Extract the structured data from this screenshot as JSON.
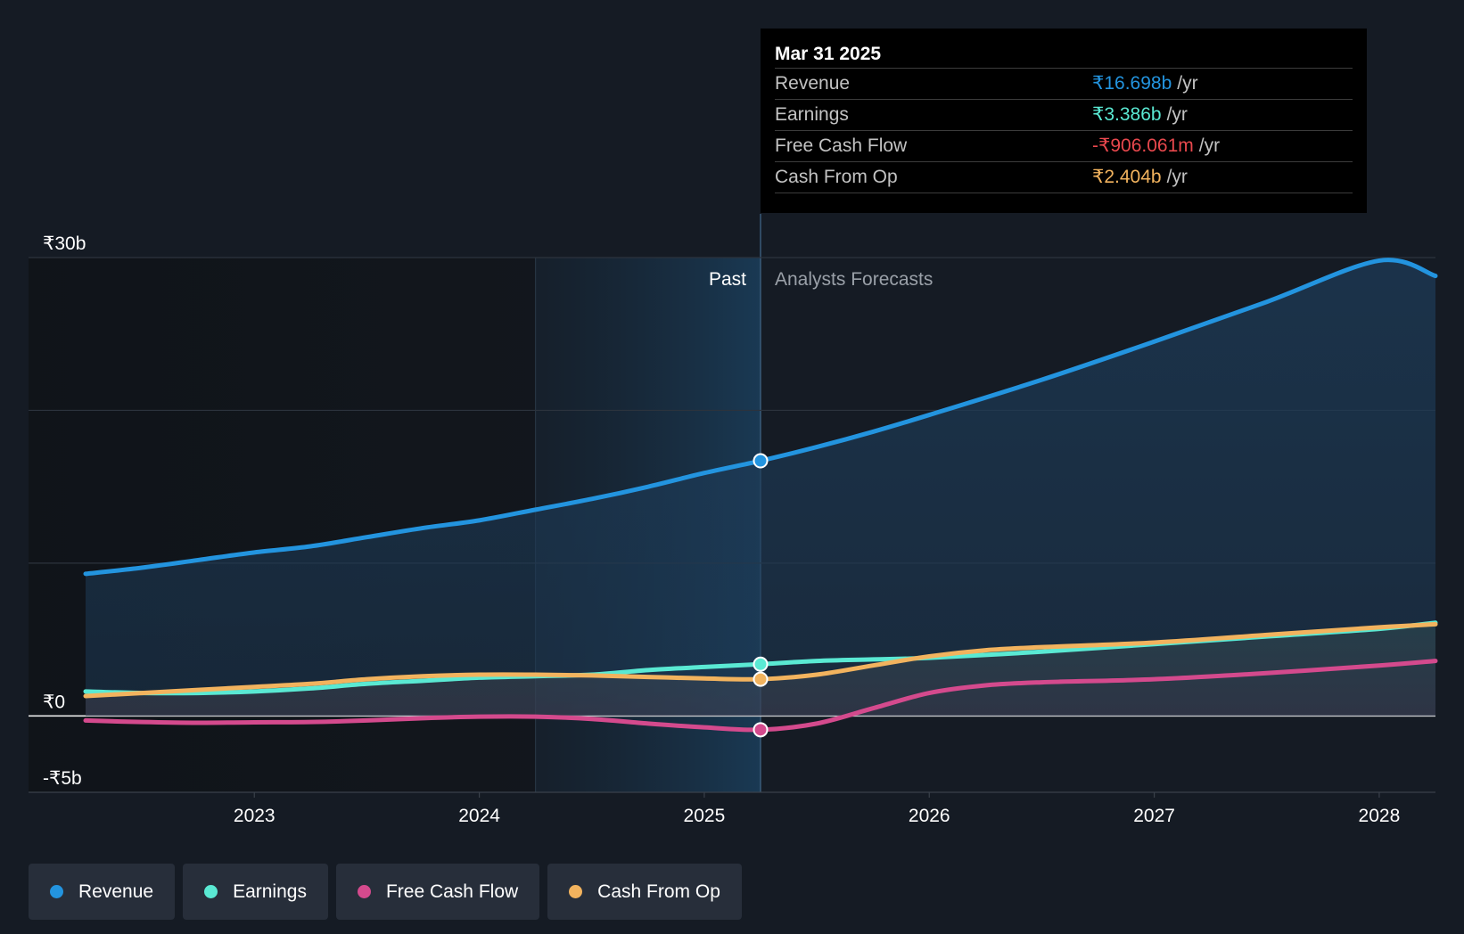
{
  "chart_data": {
    "type": "area",
    "y_unit": "₹ billions",
    "ylim": [
      -5,
      30
    ],
    "yticks": [
      {
        "value": 30,
        "label": "₹30b"
      },
      {
        "value": 0,
        "label": "₹0"
      },
      {
        "value": -5,
        "label": "-₹5b"
      }
    ],
    "xlim": [
      2022.25,
      2028.25
    ],
    "xticks": [
      {
        "value": 2023,
        "label": "2023"
      },
      {
        "value": 2024,
        "label": "2024"
      },
      {
        "value": 2025,
        "label": "2025"
      },
      {
        "value": 2026,
        "label": "2026"
      },
      {
        "value": 2027,
        "label": "2027"
      },
      {
        "value": 2028,
        "label": "2028"
      }
    ],
    "past_label": "Past",
    "forecast_label": "Analysts Forecasts",
    "highlight_start": 2024.25,
    "divider_x": 2025.25,
    "series": [
      {
        "name": "Revenue",
        "color": "#2394df",
        "points": [
          [
            2022.25,
            9.3
          ],
          [
            2022.5,
            9.7
          ],
          [
            2022.75,
            10.2
          ],
          [
            2023,
            10.7
          ],
          [
            2023.25,
            11.1
          ],
          [
            2023.5,
            11.7
          ],
          [
            2023.75,
            12.3
          ],
          [
            2024,
            12.8
          ],
          [
            2024.25,
            13.5
          ],
          [
            2024.5,
            14.2
          ],
          [
            2024.75,
            15.0
          ],
          [
            2025,
            15.9
          ],
          [
            2025.25,
            16.698
          ],
          [
            2025.5,
            17.6
          ],
          [
            2025.75,
            18.6
          ],
          [
            2026,
            19.7
          ],
          [
            2026.5,
            22.0
          ],
          [
            2027,
            24.5
          ],
          [
            2027.5,
            27.1
          ],
          [
            2028,
            29.8
          ],
          [
            2028.25,
            28.8
          ]
        ]
      },
      {
        "name": "Earnings",
        "color": "#5ae9d3",
        "points": [
          [
            2022.25,
            1.6
          ],
          [
            2022.5,
            1.5
          ],
          [
            2022.75,
            1.5
          ],
          [
            2023,
            1.6
          ],
          [
            2023.25,
            1.8
          ],
          [
            2023.5,
            2.1
          ],
          [
            2023.75,
            2.3
          ],
          [
            2024,
            2.5
          ],
          [
            2024.25,
            2.6
          ],
          [
            2024.5,
            2.7
          ],
          [
            2024.75,
            3.0
          ],
          [
            2025,
            3.2
          ],
          [
            2025.25,
            3.386
          ],
          [
            2025.5,
            3.6
          ],
          [
            2025.75,
            3.7
          ],
          [
            2026,
            3.8
          ],
          [
            2026.5,
            4.2
          ],
          [
            2027,
            4.7
          ],
          [
            2027.5,
            5.2
          ],
          [
            2028,
            5.7
          ],
          [
            2028.25,
            6.1
          ]
        ]
      },
      {
        "name": "Free Cash Flow",
        "color": "#d44a8d",
        "points": [
          [
            2022.25,
            -0.3
          ],
          [
            2022.5,
            -0.4
          ],
          [
            2022.75,
            -0.45
          ],
          [
            2023,
            -0.42
          ],
          [
            2023.25,
            -0.4
          ],
          [
            2023.5,
            -0.3
          ],
          [
            2023.75,
            -0.15
          ],
          [
            2024,
            -0.05
          ],
          [
            2024.25,
            -0.05
          ],
          [
            2024.5,
            -0.2
          ],
          [
            2024.75,
            -0.5
          ],
          [
            2025,
            -0.75
          ],
          [
            2025.25,
            -0.906
          ],
          [
            2025.5,
            -0.5
          ],
          [
            2025.75,
            0.5
          ],
          [
            2026,
            1.5
          ],
          [
            2026.25,
            2.0
          ],
          [
            2026.5,
            2.2
          ],
          [
            2027,
            2.4
          ],
          [
            2027.5,
            2.8
          ],
          [
            2028,
            3.3
          ],
          [
            2028.25,
            3.6
          ]
        ]
      },
      {
        "name": "Cash From Op",
        "color": "#f2b35e",
        "points": [
          [
            2022.25,
            1.3
          ],
          [
            2022.5,
            1.5
          ],
          [
            2022.75,
            1.7
          ],
          [
            2023,
            1.9
          ],
          [
            2023.25,
            2.1
          ],
          [
            2023.5,
            2.4
          ],
          [
            2023.75,
            2.6
          ],
          [
            2024,
            2.7
          ],
          [
            2024.25,
            2.7
          ],
          [
            2024.5,
            2.65
          ],
          [
            2024.75,
            2.55
          ],
          [
            2025,
            2.45
          ],
          [
            2025.25,
            2.404
          ],
          [
            2025.5,
            2.7
          ],
          [
            2025.75,
            3.3
          ],
          [
            2026,
            3.9
          ],
          [
            2026.25,
            4.3
          ],
          [
            2026.5,
            4.5
          ],
          [
            2027,
            4.8
          ],
          [
            2027.5,
            5.3
          ],
          [
            2028,
            5.8
          ],
          [
            2028.25,
            6.0
          ]
        ]
      }
    ]
  },
  "tooltip": {
    "date": "Mar 31 2025",
    "rows": [
      {
        "label": "Revenue",
        "value": "₹16.698b",
        "unit": "/yr",
        "color": "#2394df"
      },
      {
        "label": "Earnings",
        "value": "₹3.386b",
        "unit": "/yr",
        "color": "#5ae9d3"
      },
      {
        "label": "Free Cash Flow",
        "value": "-₹906.061m",
        "unit": "/yr",
        "color": "#e8484d"
      },
      {
        "label": "Cash From Op",
        "value": "₹2.404b",
        "unit": "/yr",
        "color": "#f2b35e"
      }
    ]
  },
  "legend": [
    {
      "label": "Revenue",
      "color": "#2394df"
    },
    {
      "label": "Earnings",
      "color": "#5ae9d3"
    },
    {
      "label": "Free Cash Flow",
      "color": "#d44a8d"
    },
    {
      "label": "Cash From Op",
      "color": "#f2b35e"
    }
  ]
}
